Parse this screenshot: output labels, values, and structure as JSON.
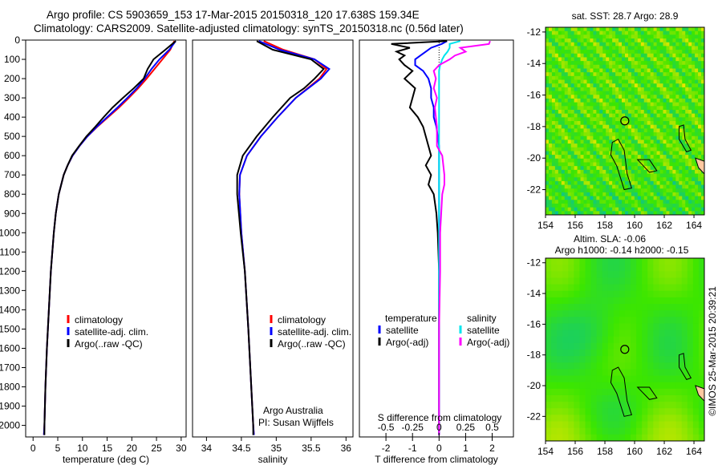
{
  "title_line1": "Argo profile: CS 5903659_153 17-Mar-2015 20150318_120 17.638S 159.34E",
  "title_line2": "Climatology: CARS2009. Satellite-adjusted climatology: synTS_20150318.nc (0.56d later)",
  "credit": "©IMOS 25-Mar-2015 20:39:21",
  "colors": {
    "climatology": "#ff0000",
    "satellite_t": "#0000ff",
    "argo": "#000000",
    "satellite_s": "#00e5ee",
    "argo_s": "#ff00ff"
  },
  "chart_data": [
    {
      "type": "line",
      "name": "temperature",
      "xlabel": "temperature (deg C)",
      "xlim": [
        -1.5,
        31
      ],
      "ylim": [
        2060,
        0
      ],
      "xticks": [
        "0",
        "5",
        "10",
        "15",
        "20",
        "25",
        "30"
      ],
      "xtick_values": [
        0,
        5,
        10,
        15,
        20,
        25,
        30
      ],
      "yticks": [
        "0",
        "100",
        "200",
        "300",
        "400",
        "500",
        "600",
        "700",
        "800",
        "900",
        "1000",
        "1100",
        "1200",
        "1300",
        "1400",
        "1500",
        "1600",
        "1700",
        "1800",
        "1900",
        "2000"
      ],
      "ytick_values": [
        0,
        100,
        200,
        300,
        400,
        500,
        600,
        700,
        800,
        900,
        1000,
        1100,
        1200,
        1300,
        1400,
        1500,
        1600,
        1700,
        1800,
        1900,
        2000
      ],
      "legend": [
        "climatology",
        "satellite-adj. clim.",
        "Argo(..raw -QC)"
      ],
      "depth": [
        5,
        50,
        100,
        150,
        200,
        250,
        300,
        350,
        400,
        450,
        500,
        550,
        600,
        650,
        700,
        800,
        900,
        1000,
        1200,
        1400,
        1600,
        1800,
        2000,
        2050
      ],
      "series": [
        {
          "name": "climatology",
          "color_key": "climatology",
          "values": [
            28.6,
            27.8,
            26.2,
            24.6,
            23.0,
            21.3,
            19.4,
            17.4,
            15.2,
            13.0,
            11.0,
            9.4,
            8.0,
            7.0,
            6.2,
            5.2,
            4.6,
            4.2,
            3.6,
            3.2,
            2.8,
            2.5,
            2.3,
            2.2
          ]
        },
        {
          "name": "satellite-adj. clim.",
          "color_key": "satellite_t",
          "values": [
            28.9,
            27.6,
            25.6,
            24.0,
            22.6,
            21.0,
            19.1,
            17.1,
            15.0,
            12.9,
            11.0,
            9.4,
            8.0,
            7.0,
            6.2,
            5.2,
            4.6,
            4.2,
            3.6,
            3.2,
            2.8,
            2.5,
            2.3,
            2.2
          ]
        },
        {
          "name": "Argo(..raw -QC)",
          "color_key": "argo",
          "values": [
            28.9,
            26.8,
            24.4,
            23.2,
            22.4,
            20.4,
            18.2,
            16.1,
            14.3,
            12.6,
            10.8,
            9.3,
            7.9,
            7.0,
            6.2,
            5.2,
            4.6,
            4.2,
            3.6,
            3.2,
            2.8,
            2.5,
            2.3,
            2.3
          ]
        }
      ]
    },
    {
      "type": "line",
      "name": "salinity",
      "xlabel": "salinity",
      "xlim": [
        33.8,
        36.1
      ],
      "ylim": [
        2060,
        0
      ],
      "xticks": [
        "34",
        "34.5",
        "35",
        "35.5",
        "36"
      ],
      "xtick_values": [
        34,
        34.5,
        35,
        35.5,
        36
      ],
      "legend": [
        "climatology",
        "satellite-adj. clim.",
        "Argo(..raw -QC)"
      ],
      "annotation": [
        "Argo Australia",
        "PI: Susan Wijffels"
      ],
      "depth": [
        5,
        50,
        100,
        150,
        200,
        250,
        300,
        400,
        500,
        600,
        700,
        800,
        1000,
        1200,
        1500,
        2000,
        2050
      ],
      "series": [
        {
          "name": "climatology",
          "color_key": "climatology",
          "values": [
            34.82,
            35.1,
            35.55,
            35.72,
            35.62,
            35.45,
            35.28,
            35.02,
            34.78,
            34.58,
            34.48,
            34.47,
            34.5,
            34.55,
            34.6,
            34.67,
            34.68
          ]
        },
        {
          "name": "satellite-adj. clim.",
          "color_key": "satellite_t",
          "values": [
            34.75,
            35.05,
            35.55,
            35.76,
            35.64,
            35.46,
            35.28,
            35.02,
            34.78,
            34.58,
            34.48,
            34.47,
            34.5,
            34.55,
            34.6,
            34.67,
            34.68
          ]
        },
        {
          "name": "Argo(..raw -QC)",
          "color_key": "argo",
          "values": [
            34.72,
            34.95,
            35.5,
            35.68,
            35.55,
            35.4,
            35.2,
            34.95,
            34.72,
            34.52,
            34.44,
            34.44,
            34.49,
            34.55,
            34.6,
            34.67,
            34.67
          ]
        }
      ]
    },
    {
      "type": "line",
      "name": "differences",
      "xlabel": "T difference from climatology",
      "xlabel_top": "S difference from climatology",
      "xlim": [
        -3,
        2.8
      ],
      "ylim": [
        2060,
        0
      ],
      "xticks": [
        "-2",
        "-1",
        "0",
        "1",
        "2"
      ],
      "xtick_values": [
        -2,
        -1,
        0,
        1,
        2
      ],
      "xticks_top": [
        "-0.5",
        "-0.25",
        "0",
        "0.25",
        "0.5"
      ],
      "xtick_values_top": [
        -0.5,
        -0.25,
        0,
        0.25,
        0.5
      ],
      "legend_t_title": "temperature",
      "legend_s_title": "salinity",
      "legend": [
        "satellite",
        "Argo(-adj)",
        "satellite",
        "Argo(-adj)"
      ],
      "depth": [
        5,
        20,
        40,
        60,
        80,
        100,
        130,
        160,
        200,
        250,
        300,
        350,
        400,
        450,
        500,
        550,
        600,
        650,
        700,
        750,
        800,
        900,
        1000,
        1200,
        1500,
        2000,
        2050
      ],
      "series": [
        {
          "name": "temperature satellite",
          "color_key": "satellite_t",
          "values": [
            0.3,
            0.1,
            -0.3,
            -0.5,
            -0.7,
            -0.9,
            -0.9,
            -0.6,
            -0.4,
            -0.3,
            -0.3,
            -0.2,
            -0.2,
            -0.1,
            -0.05,
            0,
            0,
            0,
            0,
            0,
            0,
            0,
            0,
            0,
            0,
            0,
            0
          ]
        },
        {
          "name": "temperature Argo(-adj)",
          "color_key": "argo",
          "values": [
            0.3,
            -1.8,
            -1.1,
            -1.6,
            -1.3,
            -1.5,
            -1.3,
            -1.0,
            -1.3,
            -0.9,
            -1.0,
            -1.1,
            -0.8,
            -0.6,
            -0.5,
            -0.4,
            -0.3,
            -0.5,
            -0.3,
            -0.4,
            -0.2,
            -0.1,
            -0.05,
            0,
            0,
            0,
            0
          ]
        },
        {
          "name": "salinity satellite",
          "color_key": "satellite_s",
          "values": [
            0.2,
            0.1,
            0.1,
            0.08,
            0.05,
            0.03,
            0.01,
            0,
            0,
            0,
            0,
            0,
            0,
            0,
            0,
            0,
            0,
            0,
            0,
            0,
            0,
            0,
            0,
            0,
            0,
            0,
            0
          ]
        },
        {
          "name": "salinity Argo(-adj)",
          "color_key": "argo_s",
          "values": [
            0.48,
            0.47,
            0.2,
            0.25,
            0.15,
            0.1,
            0,
            -0.05,
            -0.03,
            -0.05,
            -0.02,
            -0.04,
            -0.03,
            -0.02,
            -0.02,
            -0.02,
            0.03,
            0.04,
            0.05,
            0.05,
            0.03,
            0.02,
            0.01,
            0.01,
            0,
            0,
            0
          ]
        }
      ]
    },
    {
      "type": "heatmap",
      "name": "sst_map",
      "title": "sat. SST: 28.7 Argo: 28.9",
      "xticks": [
        "154",
        "156",
        "158",
        "160",
        "162",
        "164"
      ],
      "xtick_values": [
        154,
        156,
        158,
        160,
        162,
        164
      ],
      "yticks": [
        "-12",
        "-14",
        "-16",
        "-18",
        "-20",
        "-22"
      ],
      "ytick_values": [
        -12,
        -14,
        -16,
        -18,
        -20,
        -22
      ],
      "xlim": [
        154,
        164.7
      ],
      "ylim": [
        -23.6,
        -11.7
      ],
      "argo_position": [
        159.34,
        -17.638
      ]
    },
    {
      "type": "heatmap",
      "name": "sla_map",
      "title_line1": "Altim. SLA: -0.06",
      "title_line2": "Argo h1000: -0.14 h2000: -0.15",
      "xticks": [
        "154",
        "156",
        "158",
        "160",
        "162",
        "164"
      ],
      "xtick_values": [
        154,
        156,
        158,
        160,
        162,
        164
      ],
      "yticks": [
        "-12",
        "-14",
        "-16",
        "-18",
        "-20",
        "-22"
      ],
      "ytick_values": [
        -12,
        -14,
        -16,
        -18,
        -20,
        -22
      ],
      "xlim": [
        154,
        164.7
      ],
      "ylim": [
        -23.6,
        -11.7
      ],
      "argo_position": [
        159.34,
        -17.638
      ]
    }
  ]
}
